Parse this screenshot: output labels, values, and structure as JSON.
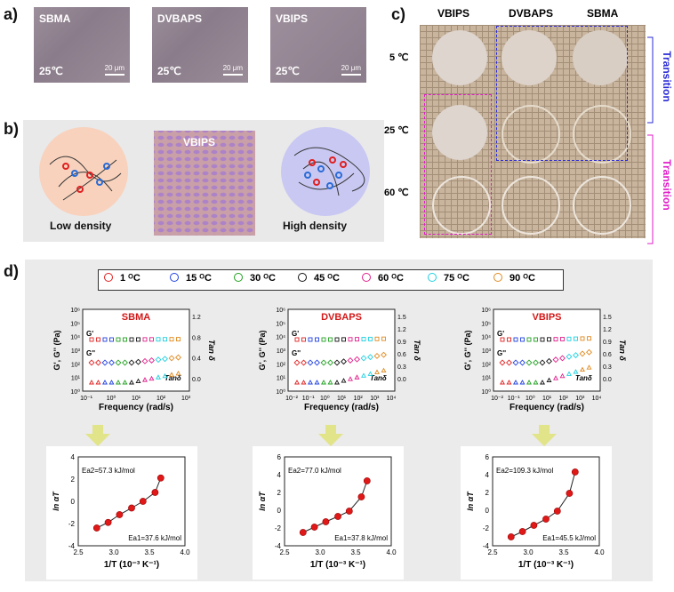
{
  "panel_labels": {
    "a": "a)",
    "b": "b)",
    "c": "c)",
    "d": "d)"
  },
  "panel_a": {
    "images": [
      {
        "title": "SBMA",
        "temp": "25℃",
        "scale": "20 μm"
      },
      {
        "title": "DVBAPS",
        "temp": "25℃",
        "scale": "20 μm"
      },
      {
        "title": "VBIPS",
        "temp": "25℃",
        "scale": "20 μm"
      }
    ]
  },
  "panel_b": {
    "low": "Low density",
    "mid": "VBIPS",
    "high": "High density"
  },
  "panel_c": {
    "columns": [
      "VBIPS",
      "DVBAPS",
      "SBMA"
    ],
    "rows": [
      "5 ℃",
      "25 ℃",
      "60 ℃"
    ],
    "transition_top": "Transition",
    "transition_bottom": "Transition",
    "colors": {
      "blue": "#2b2bd6",
      "magenta": "#e01cc9"
    }
  },
  "legend": [
    {
      "label": "1 ᴼC",
      "color": "#e02020"
    },
    {
      "label": "15 ᴼC",
      "color": "#2040e0"
    },
    {
      "label": "30 ᴼC",
      "color": "#20a020"
    },
    {
      "label": "45 ᴼC",
      "color": "#111111"
    },
    {
      "label": "60 ᴼC",
      "color": "#e0208c"
    },
    {
      "label": "75 ᴼC",
      "color": "#20d0e0"
    },
    {
      "label": "90 ᴼC",
      "color": "#e08a20"
    }
  ],
  "chart_data": [
    {
      "type": "scatter",
      "title": "SBMA",
      "xlabel": "Frequency (rad/s)",
      "ylabel": "G', G'' (Pa)",
      "y2label": "Tan δ",
      "x_ticks": [
        "10⁻¹",
        "10⁰",
        "10¹",
        "10²",
        "10³"
      ],
      "y_ticks": [
        "10⁰",
        "10¹",
        "10²",
        "10³",
        "10⁴",
        "10⁵",
        "10⁶"
      ],
      "y2_ticks": [
        "0.0",
        "0.4",
        "0.8",
        "1.2"
      ],
      "annotations": [
        "G'",
        "G''",
        "Tanδ"
      ]
    },
    {
      "type": "scatter",
      "title": "DVBAPS",
      "xlabel": "Frequency (rad/s)",
      "ylabel": "G', G'' (Pa)",
      "y2label": "Tan δ",
      "x_ticks": [
        "10⁻²",
        "10⁻¹",
        "10⁰",
        "10¹",
        "10²",
        "10³",
        "10⁴"
      ],
      "y_ticks": [
        "10⁰",
        "10¹",
        "10²",
        "10³",
        "10⁴",
        "10⁵",
        "10⁶"
      ],
      "y2_ticks": [
        "0.0",
        "0.3",
        "0.6",
        "0.9",
        "1.2",
        "1.5"
      ],
      "annotations": [
        "G'",
        "G''",
        "Tanδ"
      ]
    },
    {
      "type": "scatter",
      "title": "VBIPS",
      "xlabel": "Frequency (rad/s)",
      "ylabel": "G', G'' (Pa)",
      "y2label": "Tan δ",
      "x_ticks": [
        "10⁻²",
        "10⁻¹",
        "10⁰",
        "10¹",
        "10²",
        "10³",
        "10⁴"
      ],
      "y_ticks": [
        "10⁰",
        "10¹",
        "10²",
        "10³",
        "10⁴",
        "10⁵",
        "10⁶"
      ],
      "y2_ticks": [
        "0.0",
        "0.3",
        "0.6",
        "0.9",
        "1.2",
        "1.5"
      ],
      "annotations": [
        "G'",
        "G''",
        "Tanδ"
      ]
    },
    {
      "type": "line",
      "xlabel": "1/T (10⁻³ K⁻¹)",
      "ylabel": "ln αT",
      "xlim": [
        2.5,
        4.0
      ],
      "ylim": [
        -4,
        4
      ],
      "x": [
        2.76,
        2.92,
        3.08,
        3.25,
        3.41,
        3.58,
        3.66
      ],
      "y": [
        -2.4,
        -1.9,
        -1.2,
        -0.6,
        0.0,
        0.8,
        2.1
      ],
      "x_ticks": [
        "2.5",
        "3.0",
        "3.5",
        "4.0"
      ],
      "y_ticks": [
        "-4",
        "-2",
        "0",
        "2",
        "4"
      ],
      "ea2": "Ea2=57.3 kJ/mol",
      "ea1": "Ea1=37.6 kJ/mol"
    },
    {
      "type": "line",
      "xlabel": "1/T (10⁻³ K⁻¹)",
      "ylabel": "ln αT",
      "xlim": [
        2.5,
        4.0
      ],
      "ylim": [
        -4,
        6
      ],
      "x": [
        2.76,
        2.92,
        3.08,
        3.25,
        3.41,
        3.58,
        3.66
      ],
      "y": [
        -2.5,
        -1.9,
        -1.3,
        -0.7,
        -0.1,
        1.5,
        3.3
      ],
      "x_ticks": [
        "2.5",
        "3.0",
        "3.5",
        "4.0"
      ],
      "y_ticks": [
        "-4",
        "-2",
        "0",
        "2",
        "4",
        "6"
      ],
      "ea2": "Ea2=77.0 kJ/mol",
      "ea1": "Ea1=37.8 kJ/mol"
    },
    {
      "type": "line",
      "xlabel": "1/T (10⁻³ K⁻¹)",
      "ylabel": "ln αT",
      "xlim": [
        2.5,
        4.0
      ],
      "ylim": [
        -4,
        6
      ],
      "x": [
        2.76,
        2.92,
        3.08,
        3.25,
        3.41,
        3.58,
        3.66
      ],
      "y": [
        -3.0,
        -2.4,
        -1.7,
        -1.0,
        -0.1,
        1.9,
        4.3
      ],
      "x_ticks": [
        "2.5",
        "3.0",
        "3.5",
        "4.0"
      ],
      "y_ticks": [
        "-4",
        "-2",
        "0",
        "2",
        "4",
        "6"
      ],
      "ea2": "Ea2=109.3 kJ/mol",
      "ea1": "Ea1=45.5 kJ/mol"
    }
  ]
}
